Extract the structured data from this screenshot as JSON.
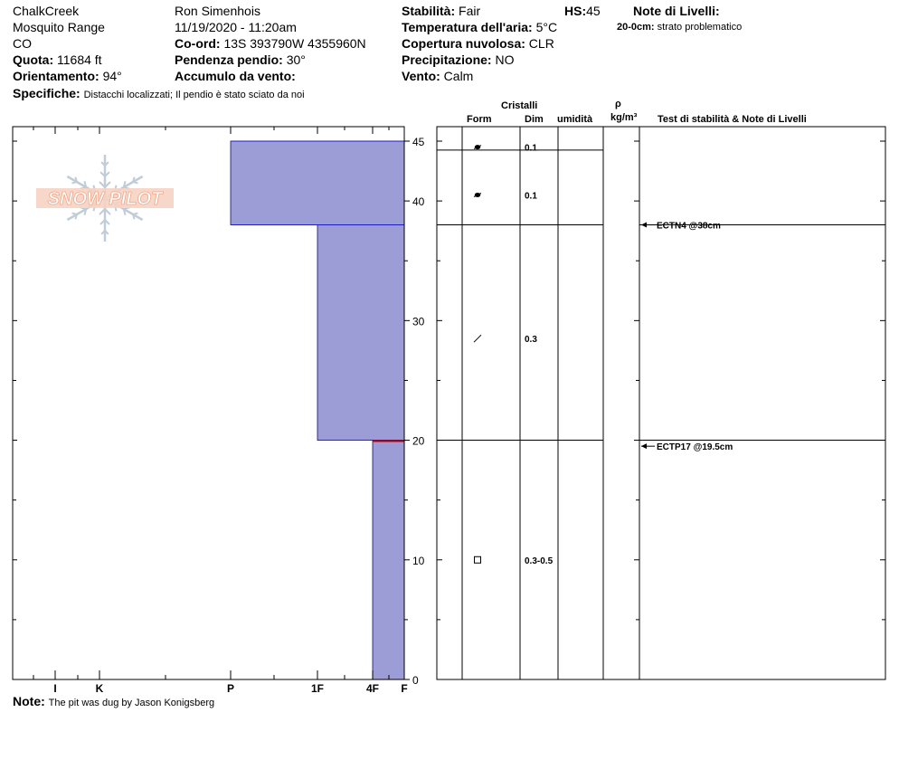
{
  "header": {
    "location": "ChalkCreek",
    "range": "Mosquito Range",
    "state": "CO",
    "elevation_label": "Quota:",
    "elevation_value": "11684 ft",
    "aspect_label": "Orientamento:",
    "aspect_value": "94°",
    "specifics_label": "Specifiche:",
    "specifics_value": "Distacchi localizzati;  Il pendio è stato sciato da noi",
    "observer": "Ron Simenhois",
    "datetime": "11/19/2020 - 11:20am",
    "coord_label": "Co-ord:",
    "coord_value": "13S 393790W 4355960N",
    "slope_label": "Pendenza pendio:",
    "slope_value": "30°",
    "wind_loading_label": "Accumulo da vento:",
    "wind_loading_value": "",
    "stability_label": "Stabilità:",
    "stability_value": "Fair",
    "air_temp_label": "Temperatura dell'aria:",
    "air_temp_value": "5°C",
    "cloud_label": "Copertura nuvolosa:",
    "cloud_value": "CLR",
    "precip_label": "Precipitazione:",
    "precip_value": "NO",
    "wind_label": "Vento:",
    "wind_value": "Calm",
    "hs_label": "HS:",
    "hs_value": "45",
    "layer_notes_title": "Note di Livelli:",
    "layer_note_depth": "20-0cm:",
    "layer_note_text": "strato problematico"
  },
  "footer": {
    "note_label": "Note:",
    "note_value": "The pit was dug by Jason Konigsberg"
  },
  "logo": {
    "text": "SNOW PILOT",
    "color": "#f2b8a0",
    "flake_color": "#c0ccd6"
  },
  "table_headers": {
    "crystals": "Cristalli",
    "form": "Form",
    "size": "Dim",
    "moisture": "umidità",
    "rho": "ρ",
    "density_unit": "kg/m³",
    "tests": "Test di stabilità & Note di Livelli"
  },
  "chart_data": {
    "type": "bar",
    "description_axis": "hardness profile",
    "hs": 45,
    "ylim": [
      0,
      45
    ],
    "y_ticks": [
      0,
      10,
      20,
      30,
      40,
      45
    ],
    "hardness_scale": [
      "F",
      "4F",
      "1F",
      "P",
      "K",
      "I"
    ],
    "hardness_labels": [
      "I",
      "K",
      "P",
      "1F",
      "4F",
      "F"
    ],
    "layers": [
      {
        "top": 45,
        "bottom": 38,
        "hardness": "P",
        "form": "precip-particles-rounded",
        "size": "0.1"
      },
      {
        "top": 38,
        "bottom": 20,
        "hardness": "1F",
        "form": "decomposing",
        "size": "0.3"
      },
      {
        "top": 20,
        "bottom": 0,
        "hardness": "4F",
        "form": "faceted",
        "size": "0.3-0.5"
      }
    ],
    "grain_marks": [
      {
        "depth": 44.5,
        "size": "0.1",
        "symbol": "rounded-decomposing"
      },
      {
        "depth": 40.5,
        "size": "0.1",
        "symbol": "rounded-decomposing"
      },
      {
        "depth": 28.5,
        "size": "0.3",
        "symbol": "slash"
      },
      {
        "depth": 10,
        "size": "0.3-0.5",
        "symbol": "square"
      }
    ],
    "layer_lines": [
      45,
      44.25,
      38,
      20
    ],
    "tests": [
      {
        "depth": 38,
        "label": "ECTN4 @38cm"
      },
      {
        "depth": 19.5,
        "label": "ECTP17 @19.5cm"
      }
    ],
    "problem_layer_depth": 20,
    "colors": {
      "fill": "#9c9cd6",
      "edge": "#2020c0",
      "problem": "#c00000"
    }
  }
}
